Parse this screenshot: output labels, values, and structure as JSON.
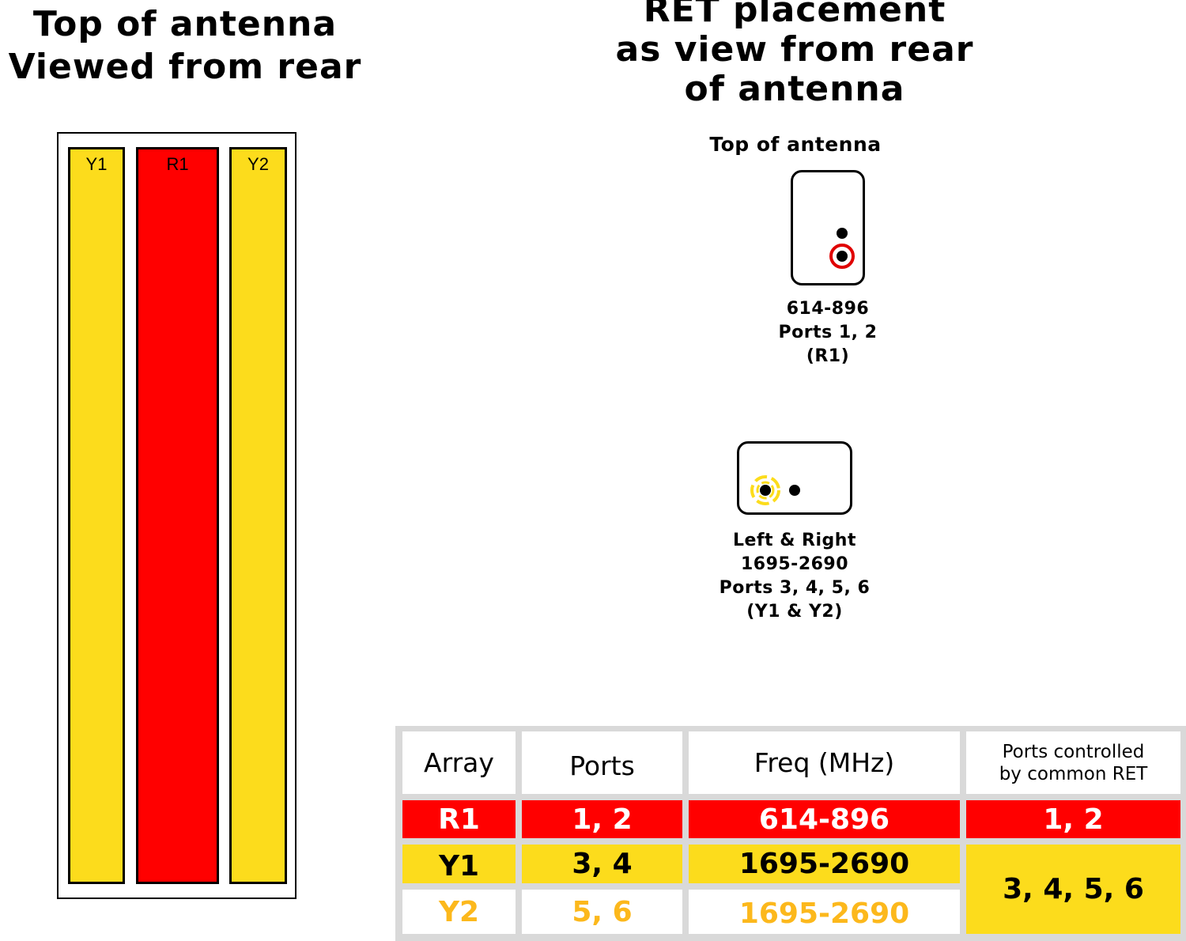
{
  "left_heading": {
    "line1": "Top of antenna",
    "line2": "Viewed from rear"
  },
  "right_heading": {
    "line1": "RET placement",
    "line2": "as view from rear",
    "line3": "of antenna"
  },
  "antenna": {
    "arrays": [
      {
        "label": "Y1",
        "color": "#fcdc1c"
      },
      {
        "label": "R1",
        "color": "#ff0000"
      },
      {
        "label": "Y2",
        "color": "#fcdc1c"
      }
    ]
  },
  "ret": {
    "top_label": "Top of antenna",
    "upper": {
      "line1": "614-896",
      "line2": "Ports 1, 2",
      "line3": "(R1)",
      "ring_color": "#ff0000"
    },
    "lower": {
      "line1": "Left & Right",
      "line2": "1695-2690",
      "line3": "Ports 3, 4, 5, 6",
      "line4": "(Y1 & Y2)",
      "ring_color": "#fcdc1c"
    }
  },
  "table": {
    "headers": {
      "array": "Array",
      "ports": "Ports",
      "freq": "Freq (MHz)",
      "common_line1": "Ports controlled",
      "common_line2": "by common RET"
    },
    "rows": [
      {
        "array": "R1",
        "ports": "1, 2",
        "freq": "614-896",
        "common": "1, 2"
      },
      {
        "array": "Y1",
        "ports": "3, 4",
        "freq": "1695-2690",
        "common": "3, 4, 5, 6"
      },
      {
        "array": "Y2",
        "ports": "5, 6",
        "freq": "1695-2690"
      }
    ]
  }
}
